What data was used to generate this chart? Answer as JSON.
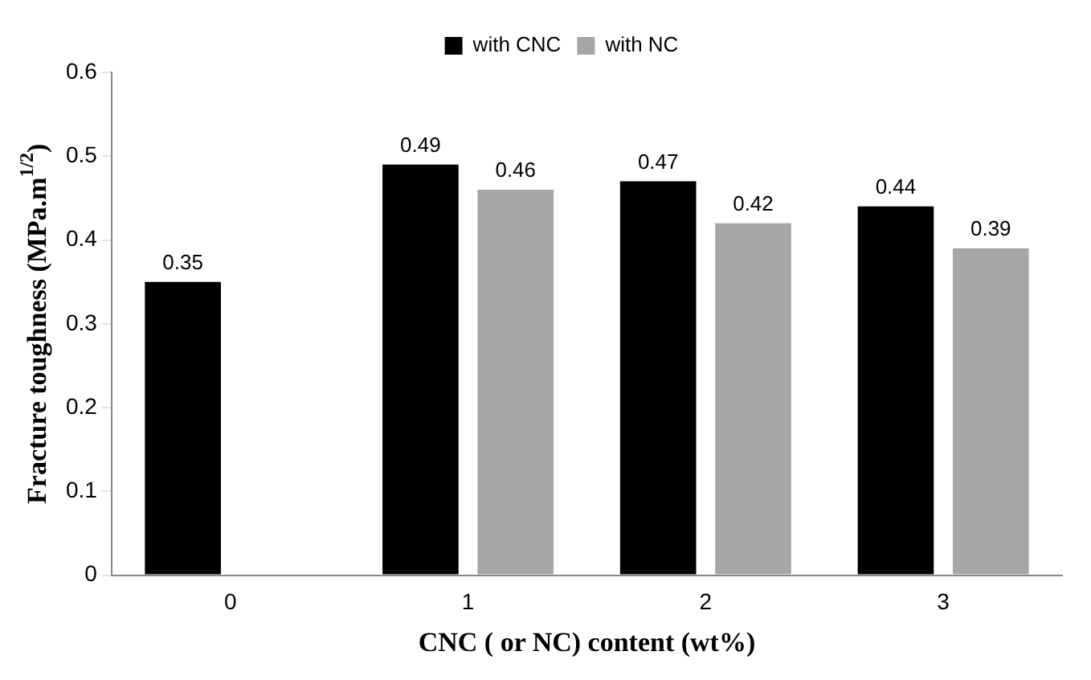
{
  "chart_data": {
    "type": "bar",
    "xlabel": "CNC ( or NC) content (wt%)",
    "ylabel": "Fracture toughness (MPa.m$^{1/2}$)",
    "categories": [
      "0",
      "1",
      "2",
      "3"
    ],
    "series": [
      {
        "name": "with CNC",
        "color": "#000000",
        "values": [
          0.35,
          0.49,
          0.47,
          0.44
        ]
      },
      {
        "name": "with NC",
        "color": "#a6a6a6",
        "values": [
          null,
          0.46,
          0.42,
          0.39
        ]
      }
    ],
    "ylim": [
      0,
      0.6
    ],
    "yticks": [
      0,
      0.1,
      0.2,
      0.3,
      0.4,
      0.5,
      0.6
    ],
    "grid": false,
    "legend": "top",
    "data_labels": true
  }
}
